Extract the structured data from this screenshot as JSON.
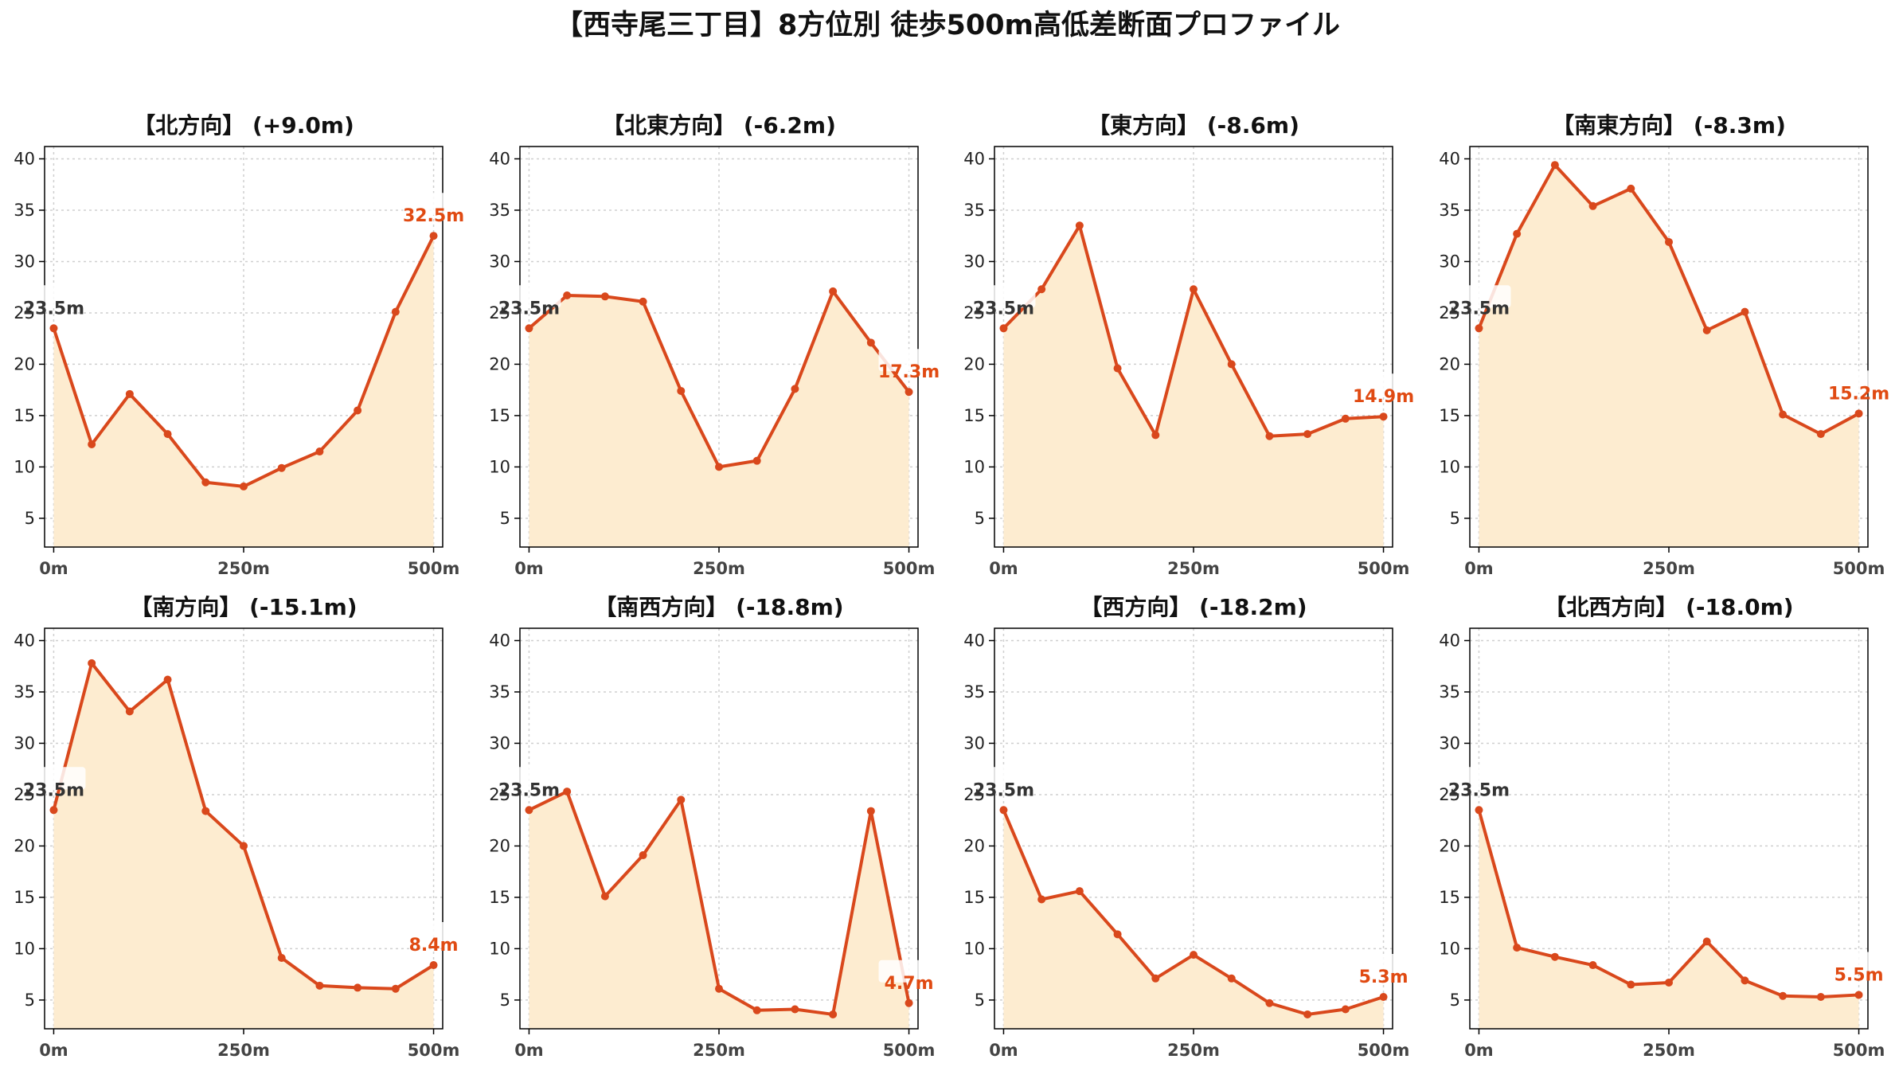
{
  "page": {
    "title": "【西寺尾三丁目】8方位別 徒歩500m高低差断面プロファイル"
  },
  "colors": {
    "line": "#d9481c",
    "fill": "#fdecd0",
    "end_label": "#e04a12",
    "start_label": "#333333",
    "grid": "#cfcfcf"
  },
  "chart_data": [
    {
      "type": "area",
      "title": "【北方向】 (+9.0m)",
      "x": [
        0,
        50,
        100,
        150,
        200,
        250,
        300,
        350,
        400,
        450,
        500
      ],
      "values": [
        23.5,
        12.2,
        17.1,
        13.2,
        8.5,
        8.1,
        9.9,
        11.5,
        15.5,
        25.1,
        32.5
      ],
      "xticks": [
        "0m",
        "250m",
        "500m"
      ],
      "yticks": [
        "5",
        "10",
        "15",
        "20",
        "25",
        "30",
        "35",
        "40"
      ],
      "ylim": [
        2.2,
        41.2
      ],
      "xlim": [
        -12,
        512
      ],
      "start_label": "23.5m",
      "end_label": "32.5m",
      "grid": true
    },
    {
      "type": "area",
      "title": "【北東方向】 (-6.2m)",
      "x": [
        0,
        50,
        100,
        150,
        200,
        250,
        300,
        350,
        400,
        450,
        500
      ],
      "values": [
        23.5,
        26.7,
        26.6,
        26.1,
        17.4,
        10.0,
        10.6,
        17.6,
        27.1,
        22.1,
        17.3
      ],
      "xticks": [
        "0m",
        "250m",
        "500m"
      ],
      "yticks": [
        "5",
        "10",
        "15",
        "20",
        "25",
        "30",
        "35",
        "40"
      ],
      "ylim": [
        2.2,
        41.2
      ],
      "xlim": [
        -12,
        512
      ],
      "start_label": "23.5m",
      "end_label": "17.3m",
      "grid": true
    },
    {
      "type": "area",
      "title": "【東方向】 (-8.6m)",
      "x": [
        0,
        50,
        100,
        150,
        200,
        250,
        300,
        350,
        400,
        450,
        500
      ],
      "values": [
        23.5,
        27.3,
        33.5,
        19.6,
        13.1,
        27.3,
        20.0,
        13.0,
        13.2,
        14.7,
        14.9
      ],
      "xticks": [
        "0m",
        "250m",
        "500m"
      ],
      "yticks": [
        "5",
        "10",
        "15",
        "20",
        "25",
        "30",
        "35",
        "40"
      ],
      "ylim": [
        2.2,
        41.2
      ],
      "xlim": [
        -12,
        512
      ],
      "start_label": "23.5m",
      "end_label": "14.9m",
      "grid": true
    },
    {
      "type": "area",
      "title": "【南東方向】 (-8.3m)",
      "x": [
        0,
        50,
        100,
        150,
        200,
        250,
        300,
        350,
        400,
        450,
        500
      ],
      "values": [
        23.5,
        32.7,
        39.4,
        35.4,
        37.1,
        31.9,
        23.3,
        25.1,
        15.1,
        13.2,
        15.2
      ],
      "xticks": [
        "0m",
        "250m",
        "500m"
      ],
      "yticks": [
        "5",
        "10",
        "15",
        "20",
        "25",
        "30",
        "35",
        "40"
      ],
      "ylim": [
        2.2,
        41.2
      ],
      "xlim": [
        -12,
        512
      ],
      "start_label": "23.5m",
      "end_label": "15.2m",
      "grid": true
    },
    {
      "type": "area",
      "title": "【南方向】 (-15.1m)",
      "x": [
        0,
        50,
        100,
        150,
        200,
        250,
        300,
        350,
        400,
        450,
        500
      ],
      "values": [
        23.5,
        37.8,
        33.1,
        36.2,
        23.4,
        20.0,
        9.1,
        6.4,
        6.2,
        6.1,
        8.4
      ],
      "xticks": [
        "0m",
        "250m",
        "500m"
      ],
      "yticks": [
        "5",
        "10",
        "15",
        "20",
        "25",
        "30",
        "35",
        "40"
      ],
      "ylim": [
        2.2,
        41.2
      ],
      "xlim": [
        -12,
        512
      ],
      "start_label": "23.5m",
      "end_label": "8.4m",
      "grid": true
    },
    {
      "type": "area",
      "title": "【南西方向】 (-18.8m)",
      "x": [
        0,
        50,
        100,
        150,
        200,
        250,
        300,
        350,
        400,
        450,
        500
      ],
      "values": [
        23.5,
        25.3,
        15.1,
        19.1,
        24.5,
        6.1,
        4.0,
        4.1,
        3.6,
        23.4,
        4.7
      ],
      "xticks": [
        "0m",
        "250m",
        "500m"
      ],
      "yticks": [
        "5",
        "10",
        "15",
        "20",
        "25",
        "30",
        "35",
        "40"
      ],
      "ylim": [
        2.2,
        41.2
      ],
      "xlim": [
        -12,
        512
      ],
      "start_label": "23.5m",
      "end_label": "4.7m",
      "grid": true
    },
    {
      "type": "area",
      "title": "【西方向】 (-18.2m)",
      "x": [
        0,
        50,
        100,
        150,
        200,
        250,
        300,
        350,
        400,
        450,
        500
      ],
      "values": [
        23.5,
        14.8,
        15.6,
        11.4,
        7.1,
        9.4,
        7.1,
        4.7,
        3.6,
        4.1,
        5.3
      ],
      "xticks": [
        "0m",
        "250m",
        "500m"
      ],
      "yticks": [
        "5",
        "10",
        "15",
        "20",
        "25",
        "30",
        "35",
        "40"
      ],
      "ylim": [
        2.2,
        41.2
      ],
      "xlim": [
        -12,
        512
      ],
      "start_label": "23.5m",
      "end_label": "5.3m",
      "grid": true
    },
    {
      "type": "area",
      "title": "【北西方向】 (-18.0m)",
      "x": [
        0,
        50,
        100,
        150,
        200,
        250,
        300,
        350,
        400,
        450,
        500
      ],
      "values": [
        23.5,
        10.1,
        9.2,
        8.4,
        6.5,
        6.7,
        10.7,
        6.9,
        5.4,
        5.3,
        5.5
      ],
      "xticks": [
        "0m",
        "250m",
        "500m"
      ],
      "yticks": [
        "5",
        "10",
        "15",
        "20",
        "25",
        "30",
        "35",
        "40"
      ],
      "ylim": [
        2.2,
        41.2
      ],
      "xlim": [
        -12,
        512
      ],
      "start_label": "23.5m",
      "end_label": "5.5m",
      "grid": true
    }
  ]
}
